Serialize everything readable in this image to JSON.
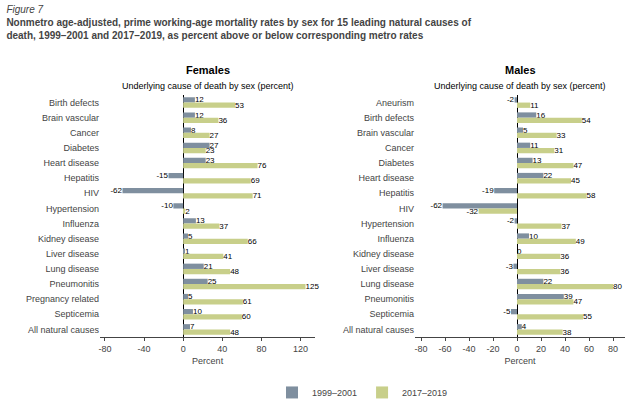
{
  "title": [
    "Figure 7",
    "Nonmetro age-adjusted, prime working-age mortality rates by sex for 15 leading natural causes of",
    "death, 1999–2001 and 2017–2019, as percent above or below corresponding metro rates"
  ],
  "chart_data": [
    {
      "type": "bar",
      "orientation": "horizontal",
      "title": "Females",
      "subtitle": "Underlying cause of death by sex (percent)",
      "categories": [
        "Birth defects",
        "Brain vascular",
        "Cancer",
        "Diabetes",
        "Heart disease",
        "Hepatitis",
        "HIV",
        "Hypertension",
        "Influenza",
        "Kidney disease",
        "Liver disease",
        "Lung disease",
        "Pneumonitis",
        "Pregnancy related",
        "Septicemia",
        "All natural causes"
      ],
      "series": [
        {
          "name": "1999–2001",
          "color": "#7f8f9f",
          "values": [
            12,
            12,
            8,
            27,
            23,
            -15,
            -62,
            -10,
            13,
            5,
            1,
            21,
            25,
            5,
            10,
            7
          ]
        },
        {
          "name": "2017–2019",
          "color": "#c8cf8a",
          "values": [
            53,
            36,
            27,
            23,
            76,
            69,
            71,
            2,
            37,
            66,
            41,
            48,
            125,
            61,
            60,
            48
          ]
        }
      ],
      "xlabel": "Percent",
      "xlim": [
        -85,
        135
      ],
      "xticks": [
        -80,
        -40,
        0,
        40,
        80,
        120
      ],
      "data_labels": true,
      "grid": false,
      "legend": "bottom"
    },
    {
      "type": "bar",
      "orientation": "horizontal",
      "title": "Males",
      "subtitle": "Underlying cause of death by sex (percent)",
      "categories": [
        "Aneurism",
        "Birth defects",
        "Brain vascular",
        "Cancer",
        "Diabetes",
        "Heart disease",
        "Hepatitis",
        "HIV",
        "Hypertension",
        "Influenza",
        "Kidney disease",
        "Liver disease",
        "Lung disease",
        "Pneumonitis",
        "Septicemia",
        "All natural causes"
      ],
      "series": [
        {
          "name": "1999–2001",
          "color": "#7f8f9f",
          "values": [
            -2,
            16,
            5,
            11,
            13,
            22,
            -19,
            -62,
            -2,
            10,
            0,
            -3,
            22,
            39,
            -5,
            4
          ]
        },
        {
          "name": "2017–2019",
          "color": "#c8cf8a",
          "values": [
            11,
            54,
            33,
            31,
            47,
            45,
            58,
            -32,
            37,
            49,
            36,
            36,
            80,
            47,
            55,
            38
          ]
        }
      ],
      "xlabel": "Percent",
      "xlim": [
        -85,
        90
      ],
      "xticks": [
        -80,
        -60,
        -40,
        -20,
        0,
        20,
        40,
        60,
        80
      ],
      "data_labels": true,
      "grid": false
    }
  ]
}
